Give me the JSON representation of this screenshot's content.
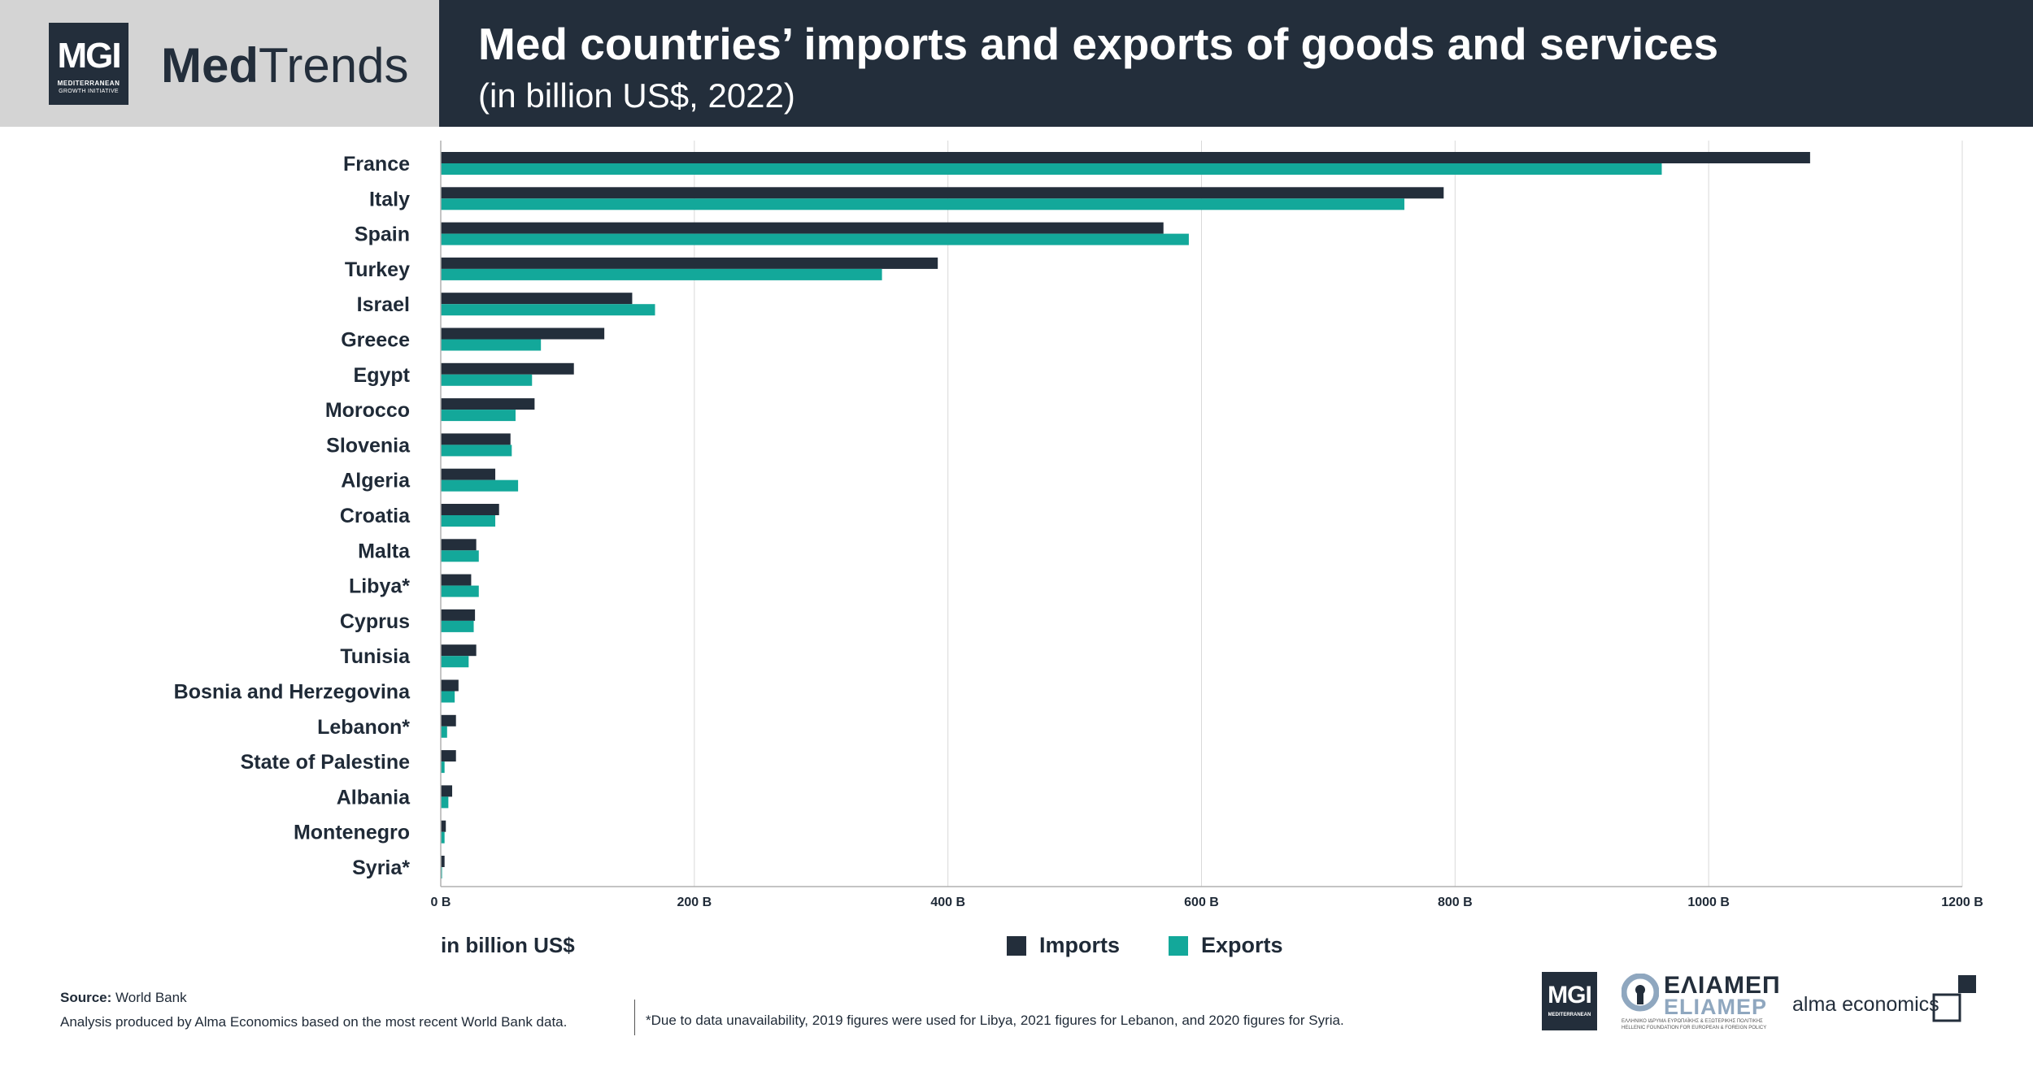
{
  "brand": {
    "logo_text": "MGI",
    "logo_sub1": "MEDITERRANEAN",
    "logo_sub2": "GROWTH INITIATIVE",
    "name_bold": "Med",
    "name_light": "Trends"
  },
  "header": {
    "title": "Med countries’ imports and exports of goods and services",
    "subtitle": "(in billion US$, 2022)"
  },
  "colors": {
    "imports": "#232e3b",
    "exports": "#13a89a",
    "grid": "#d9d9d9",
    "header_bg": "#232e3b"
  },
  "chart_data": {
    "type": "bar",
    "orientation": "horizontal",
    "title": "Med countries’ imports and exports of goods and services",
    "subtitle": "(in billion US$, 2022)",
    "xlabel": "in billion US$",
    "ylabel": "",
    "xlim": [
      0,
      1200
    ],
    "xticks": [
      0,
      200,
      400,
      600,
      800,
      1000,
      1200
    ],
    "xtick_labels": [
      "0 B",
      "200 B",
      "400 B",
      "600 B",
      "800 B",
      "1000 B",
      "1200 B"
    ],
    "grid": true,
    "legend_position": "bottom-center",
    "categories": [
      "France",
      "Italy",
      "Spain",
      "Turkey",
      "Israel",
      "Greece",
      "Egypt",
      "Morocco",
      "Slovenia",
      "Algeria",
      "Croatia",
      "Malta",
      "Libya*",
      "Cyprus",
      "Tunisia",
      "Bosnia and Herzegovina",
      "Lebanon*",
      "State of Palestine",
      "Albania",
      "Montenegro",
      "Syria*"
    ],
    "series": [
      {
        "name": "Imports",
        "values": [
          1080,
          791,
          570,
          392,
          151,
          129,
          105,
          74,
          55,
          43,
          46,
          28,
          24,
          27,
          28,
          14,
          12,
          12,
          9,
          4,
          3
        ]
      },
      {
        "name": "Exports",
        "values": [
          963,
          760,
          590,
          348,
          169,
          79,
          72,
          59,
          56,
          61,
          43,
          30,
          30,
          26,
          22,
          11,
          5,
          3,
          6,
          3,
          1
        ]
      }
    ]
  },
  "legend": {
    "imports_label": "Imports",
    "exports_label": "Exports"
  },
  "footer": {
    "source_label": "Source:",
    "source_value": "World Bank",
    "analysis": "Analysis produced by Alma Economics based on the most recent World Bank data.",
    "footnote": "*Due to data unavailability, 2019 figures were used for Libya, 2021 figures for Lebanon, and 2020 figures for Syria."
  },
  "partners": {
    "mgi_text": "MGI",
    "mgi_sub": "MEDITERRANEAN",
    "eliamep_greek": "ΕΛΙΑΜΕΠ",
    "eliamep_latin": "ELIAMEP",
    "eliamep_tiny1": "ΕΛΛΗΝΙΚΟ ΙΔΡΥΜΑ ΕΥΡΩΠΑΪΚΗΣ & ΕΞΩΤΕΡΙΚΗΣ ΠΟΛΙΤΙΚΗΣ",
    "eliamep_tiny2": "HELLENIC FOUNDATION FOR EUROPEAN & FOREIGN POLICY",
    "alma_text": "alma economics"
  }
}
